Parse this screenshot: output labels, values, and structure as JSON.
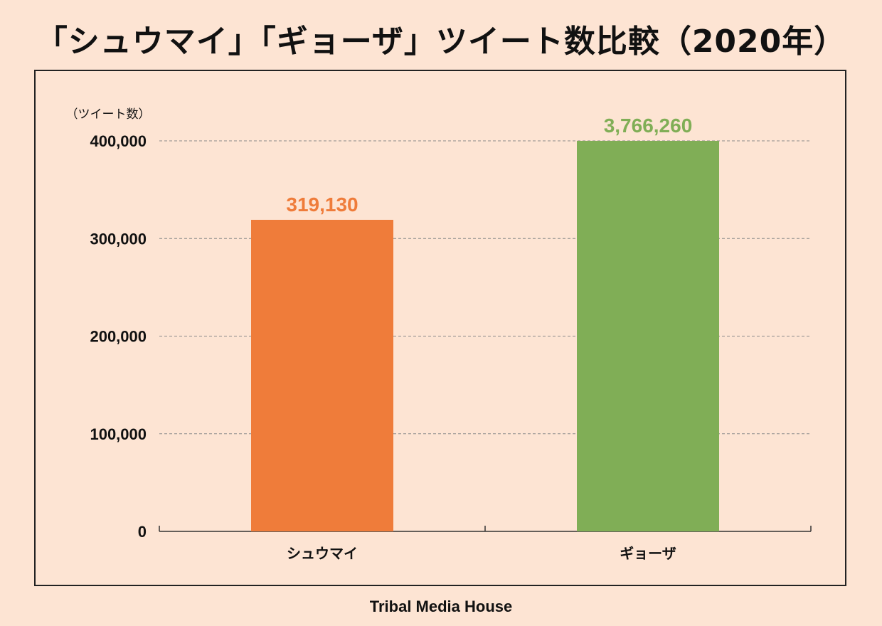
{
  "title": "「シュウマイ」「ギョーザ」ツイート数比較（2020年）",
  "footer": "Tribal Media House",
  "chart_data": {
    "type": "bar",
    "title": "「シュウマイ」「ギョーザ」ツイート数比較（2020年）",
    "ylabel": "（ツイート数）",
    "xlabel": "",
    "categories": [
      "シュウマイ",
      "ギョーザ"
    ],
    "values": [
      319130,
      3766260
    ],
    "data_labels": [
      "319,130",
      "3,766,260"
    ],
    "ylim": [
      0,
      400000
    ],
    "yticks": [
      0,
      100000,
      200000,
      300000,
      400000
    ],
    "ytick_labels": [
      "0",
      "100,000",
      "200,000",
      "300,000",
      "400,000"
    ],
    "grid": true,
    "legend": "none",
    "colors": [
      "#ef7c3a",
      "#80ae56"
    ]
  }
}
